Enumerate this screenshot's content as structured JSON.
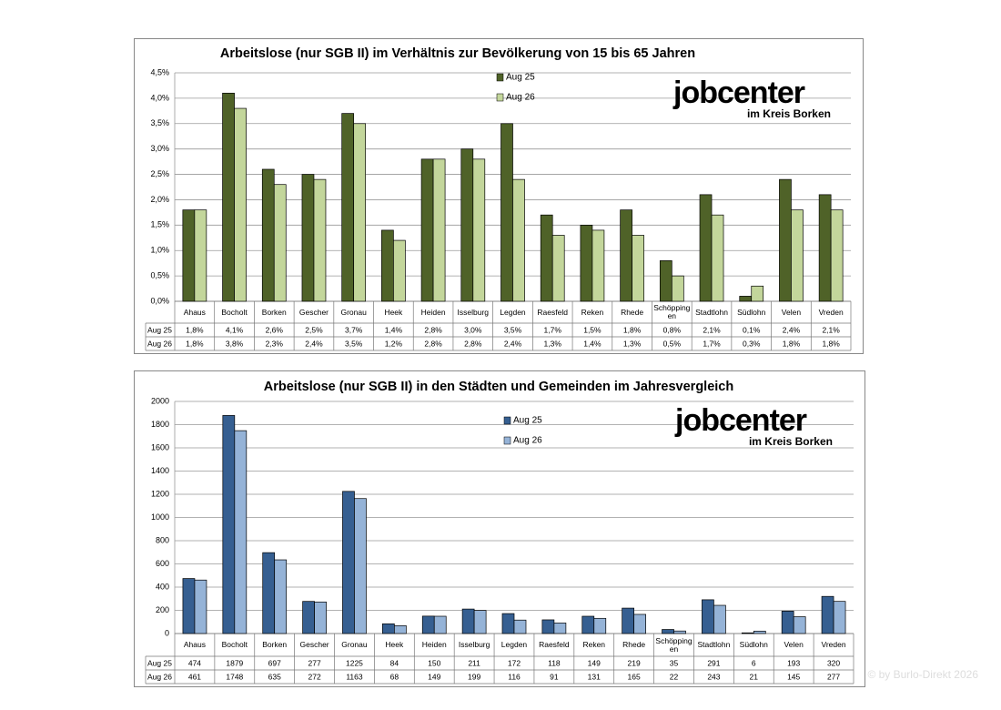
{
  "chart_data": [
    {
      "type": "bar",
      "title": "Arbeitslose (nur SGB II) im Verhältnis zur Bevölkerung von 15 bis 65 Jahren",
      "categories": [
        "Ahaus",
        "Bocholt",
        "Borken",
        "Gescher",
        "Gronau",
        "Heek",
        "Heiden",
        "Isselburg",
        "Legden",
        "Raesfeld",
        "Reken",
        "Rhede",
        "Schöppingen",
        "Stadtlohn",
        "Südlohn",
        "Velen",
        "Vreden"
      ],
      "series": [
        {
          "name": "Aug 25",
          "color": "#4f6228",
          "values": [
            1.8,
            4.1,
            2.6,
            2.5,
            3.7,
            1.4,
            2.8,
            3.0,
            3.5,
            1.7,
            1.5,
            1.8,
            0.8,
            2.1,
            0.1,
            2.4,
            2.1
          ],
          "value_labels": [
            "1,8%",
            "4,1%",
            "2,6%",
            "2,5%",
            "3,7%",
            "1,4%",
            "2,8%",
            "3,0%",
            "3,5%",
            "1,7%",
            "1,5%",
            "1,8%",
            "0,8%",
            "2,1%",
            "0,1%",
            "2,4%",
            "2,1%"
          ]
        },
        {
          "name": "Aug 26",
          "color": "#c3d69b",
          "values": [
            1.8,
            3.8,
            2.3,
            2.4,
            3.5,
            1.2,
            2.8,
            2.8,
            2.4,
            1.3,
            1.4,
            1.3,
            0.5,
            1.7,
            0.3,
            1.8,
            1.8
          ],
          "value_labels": [
            "1,8%",
            "3,8%",
            "2,3%",
            "2,4%",
            "3,5%",
            "1,2%",
            "2,8%",
            "2,8%",
            "2,4%",
            "1,3%",
            "1,4%",
            "1,3%",
            "0,5%",
            "1,7%",
            "0,3%",
            "1,8%",
            "1,8%"
          ]
        }
      ],
      "ylim": [
        0,
        4.5
      ],
      "yticks": [
        {
          "value": 0,
          "label": "0,0%"
        },
        {
          "value": 0.5,
          "label": "0,5%"
        },
        {
          "value": 1,
          "label": "1,0%"
        },
        {
          "value": 1.5,
          "label": "1,5%"
        },
        {
          "value": 2,
          "label": "2,0%"
        },
        {
          "value": 2.5,
          "label": "2,5%"
        },
        {
          "value": 3,
          "label": "3,0%"
        },
        {
          "value": 3.5,
          "label": "3,5%"
        },
        {
          "value": 4,
          "label": "4,0%"
        },
        {
          "value": 4.5,
          "label": "4,5%"
        }
      ],
      "grid": true,
      "logo": "jobcenter",
      "logo_subtitle": "im Kreis Borken"
    },
    {
      "type": "bar",
      "title": "Arbeitslose (nur SGB II) in den Städten und Gemeinden im Jahresvergleich",
      "categories": [
        "Ahaus",
        "Bocholt",
        "Borken",
        "Gescher",
        "Gronau",
        "Heek",
        "Heiden",
        "Isselburg",
        "Legden",
        "Raesfeld",
        "Reken",
        "Rhede",
        "Schöppingen",
        "Stadtlohn",
        "Südlohn",
        "Velen",
        "Vreden"
      ],
      "series": [
        {
          "name": "Aug 25",
          "color": "#365f91",
          "values": [
            474,
            1879,
            697,
            277,
            1225,
            84,
            150,
            211,
            172,
            118,
            149,
            219,
            35,
            291,
            6,
            193,
            320
          ]
        },
        {
          "name": "Aug 26",
          "color": "#95b3d7",
          "values": [
            461,
            1748,
            635,
            272,
            1163,
            68,
            149,
            199,
            116,
            91,
            131,
            165,
            22,
            243,
            21,
            145,
            277
          ]
        }
      ],
      "ylim": [
        0,
        2000
      ],
      "yticks": [
        0,
        200,
        400,
        600,
        800,
        1000,
        1200,
        1400,
        1600,
        1800,
        2000
      ],
      "grid": true,
      "logo": "jobcenter",
      "logo_subtitle": "im Kreis Borken"
    }
  ],
  "watermark": "© by Burlo-Direkt 2026"
}
